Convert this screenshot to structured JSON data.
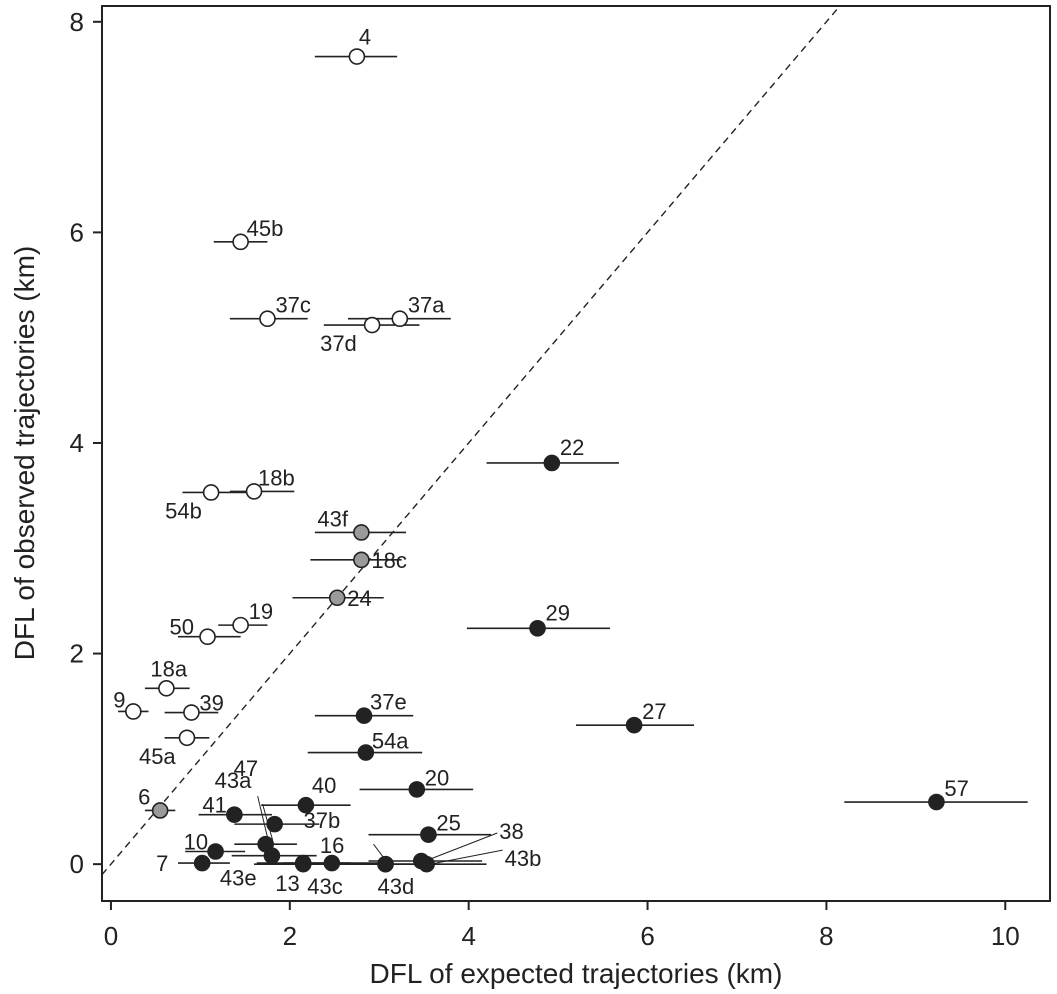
{
  "chart_data": {
    "type": "scatter",
    "xlabel": "DFL of expected trajectories (km)",
    "ylabel": "DFL of observed trajectories (km)",
    "xlim": [
      -0.1,
      10.5
    ],
    "ylim": [
      -0.35,
      8.15
    ],
    "xticks": [
      "0",
      "2",
      "4",
      "6",
      "8",
      "10"
    ],
    "yticks": [
      "0",
      "2",
      "4",
      "6",
      "8"
    ],
    "reference_line": "y = x (dashed)",
    "error_bars": "horizontal",
    "fill_colors": {
      "open": "#ffffff",
      "grey": "#9a9a9a",
      "black": "#222222"
    },
    "points": [
      {
        "label": "4",
        "x": 2.75,
        "y": 7.67,
        "xmin": 2.28,
        "xmax": 3.2,
        "fill": "open"
      },
      {
        "label": "45b",
        "x": 1.45,
        "y": 5.91,
        "xmin": 1.15,
        "xmax": 1.75,
        "fill": "open"
      },
      {
        "label": "37c",
        "x": 1.75,
        "y": 5.18,
        "xmin": 1.33,
        "xmax": 2.2,
        "fill": "open"
      },
      {
        "label": "37a",
        "x": 3.23,
        "y": 5.18,
        "xmin": 2.65,
        "xmax": 3.8,
        "fill": "open"
      },
      {
        "label": "37d",
        "x": 2.92,
        "y": 5.12,
        "xmin": 2.38,
        "xmax": 3.45,
        "fill": "open"
      },
      {
        "label": "18b",
        "x": 1.6,
        "y": 3.54,
        "xmin": 1.33,
        "xmax": 2.05,
        "fill": "open"
      },
      {
        "label": "54b",
        "x": 1.12,
        "y": 3.53,
        "xmin": 0.8,
        "xmax": 1.6,
        "fill": "open"
      },
      {
        "label": "19",
        "x": 1.45,
        "y": 2.27,
        "xmin": 1.2,
        "xmax": 1.75,
        "fill": "open"
      },
      {
        "label": "50",
        "x": 1.08,
        "y": 2.16,
        "xmin": 0.75,
        "xmax": 1.45,
        "fill": "open"
      },
      {
        "label": "18a",
        "x": 0.62,
        "y": 1.67,
        "xmin": 0.38,
        "xmax": 0.88,
        "fill": "open"
      },
      {
        "label": "9",
        "x": 0.25,
        "y": 1.45,
        "xmin": 0.08,
        "xmax": 0.42,
        "fill": "open"
      },
      {
        "label": "39",
        "x": 0.9,
        "y": 1.44,
        "xmin": 0.6,
        "xmax": 1.2,
        "fill": "open"
      },
      {
        "label": "45a",
        "x": 0.85,
        "y": 1.2,
        "xmin": 0.6,
        "xmax": 1.1,
        "fill": "open"
      },
      {
        "label": "43f",
        "x": 2.8,
        "y": 3.15,
        "xmin": 2.28,
        "xmax": 3.3,
        "fill": "grey"
      },
      {
        "label": "18c",
        "x": 2.8,
        "y": 2.89,
        "xmin": 2.23,
        "xmax": 3.25,
        "fill": "grey"
      },
      {
        "label": "24",
        "x": 2.53,
        "y": 2.53,
        "xmin": 2.03,
        "xmax": 3.05,
        "fill": "grey"
      },
      {
        "label": "6",
        "x": 0.55,
        "y": 0.51,
        "xmin": 0.38,
        "xmax": 0.72,
        "fill": "grey"
      },
      {
        "label": "22",
        "x": 4.93,
        "y": 3.81,
        "xmin": 4.2,
        "xmax": 5.68,
        "fill": "black"
      },
      {
        "label": "29",
        "x": 4.77,
        "y": 2.24,
        "xmin": 3.98,
        "xmax": 5.58,
        "fill": "black"
      },
      {
        "label": "27",
        "x": 5.85,
        "y": 1.32,
        "xmin": 5.2,
        "xmax": 6.52,
        "fill": "black"
      },
      {
        "label": "57",
        "x": 9.23,
        "y": 0.59,
        "xmin": 8.2,
        "xmax": 10.25,
        "fill": "black"
      },
      {
        "label": "37e",
        "x": 2.83,
        "y": 1.41,
        "xmin": 2.28,
        "xmax": 3.38,
        "fill": "black"
      },
      {
        "label": "54a",
        "x": 2.85,
        "y": 1.06,
        "xmin": 2.2,
        "xmax": 3.48,
        "fill": "black"
      },
      {
        "label": "20",
        "x": 3.42,
        "y": 0.71,
        "xmin": 2.78,
        "xmax": 4.05,
        "fill": "black"
      },
      {
        "label": "40",
        "x": 2.18,
        "y": 0.56,
        "xmin": 1.68,
        "xmax": 2.68,
        "fill": "black"
      },
      {
        "label": "41",
        "x": 1.38,
        "y": 0.47,
        "xmin": 0.98,
        "xmax": 1.8,
        "fill": "black"
      },
      {
        "label": "43a",
        "x": 1.83,
        "y": 0.38,
        "xmin": 1.38,
        "xmax": 2.33,
        "fill": "black"
      },
      {
        "label": "25",
        "x": 3.55,
        "y": 0.28,
        "xmin": 2.88,
        "xmax": 4.25,
        "fill": "black"
      },
      {
        "label": "47",
        "x": 1.73,
        "y": 0.19,
        "xmin": 1.38,
        "xmax": 2.08,
        "fill": "black"
      },
      {
        "label": "10",
        "x": 1.17,
        "y": 0.12,
        "xmin": 0.83,
        "xmax": 1.5,
        "fill": "black"
      },
      {
        "label": "43e",
        "x": 1.8,
        "y": 0.08,
        "xmin": 1.35,
        "xmax": 2.3,
        "fill": "black"
      },
      {
        "label": "7",
        "x": 1.02,
        "y": 0.01,
        "xmin": 0.75,
        "xmax": 1.33,
        "fill": "black"
      },
      {
        "label": "13",
        "x": 2.15,
        "y": 0.01,
        "xmin": 1.63,
        "xmax": 2.68,
        "fill": "black"
      },
      {
        "label": "16",
        "x": 2.47,
        "y": 0.01,
        "xmin": 1.93,
        "xmax": 3.0,
        "fill": "black"
      },
      {
        "label": "43c",
        "x": 2.15,
        "y": 0.0,
        "xmin": 1.6,
        "xmax": 2.7,
        "fill": "black"
      },
      {
        "label": "37b",
        "x": 3.07,
        "y": 0.0,
        "xmin": 2.8,
        "xmax": 3.35,
        "fill": "black"
      },
      {
        "label": "43d",
        "x": 3.07,
        "y": 0.0,
        "xmin": 2.48,
        "xmax": 3.68,
        "fill": "black"
      },
      {
        "label": "38",
        "x": 3.47,
        "y": 0.03,
        "xmin": 2.88,
        "xmax": 4.15,
        "fill": "black"
      },
      {
        "label": "43b",
        "x": 3.53,
        "y": 0.0,
        "xmin": 2.83,
        "xmax": 4.2,
        "fill": "black"
      }
    ]
  }
}
